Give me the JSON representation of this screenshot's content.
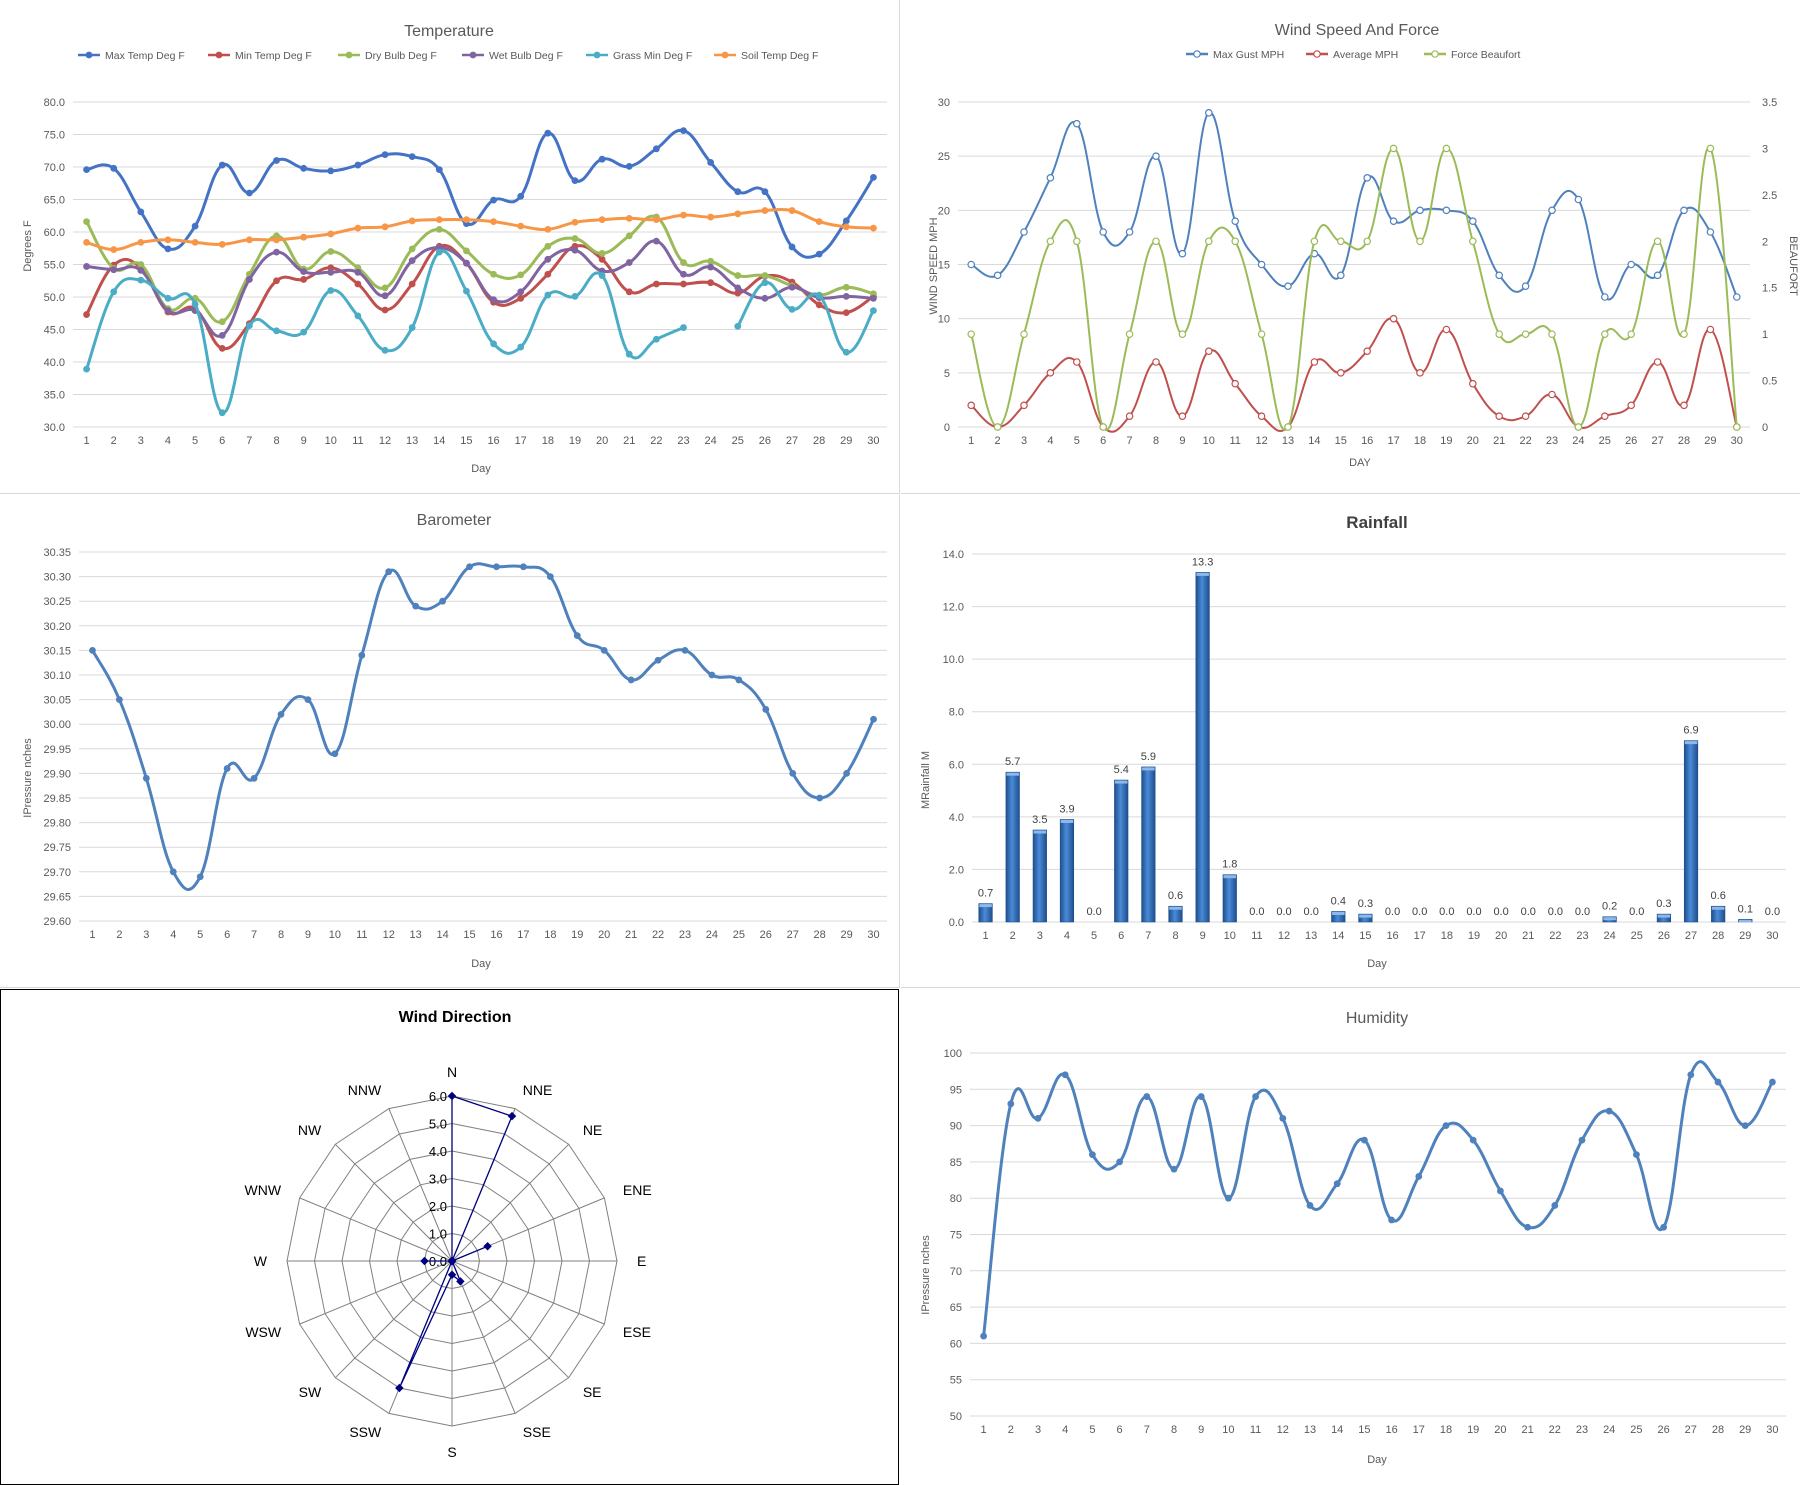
{
  "chart_data": [
    {
      "id": "temperature",
      "type": "line",
      "title": "Temperature",
      "xlabel": "Day",
      "ylabel": "Degrees F",
      "ylim": [
        30,
        80
      ],
      "yticks": [
        "80.0",
        "75.0",
        "70.0",
        "65.0",
        "60.0",
        "55.0",
        "50.0",
        "45.0",
        "40.0",
        "35.0",
        "30.0"
      ],
      "categories": [
        "1",
        "2",
        "3",
        "4",
        "5",
        "6",
        "7",
        "8",
        "9",
        "10",
        "11",
        "12",
        "13",
        "14",
        "15",
        "16",
        "17",
        "18",
        "19",
        "20",
        "21",
        "22",
        "23",
        "24",
        "25",
        "26",
        "27",
        "28",
        "29",
        "30"
      ],
      "legend_position": "top",
      "grid": true,
      "series": [
        {
          "name": "Max Temp Deg F",
          "color": "#4472C4",
          "values": [
            69.6,
            69.8,
            63.1,
            57.4,
            60.9,
            70.3,
            66.0,
            71.0,
            69.8,
            69.4,
            70.3,
            71.9,
            71.6,
            69.6,
            61.3,
            64.9,
            65.5,
            75.2,
            67.9,
            71.2,
            70.1,
            72.8,
            75.6,
            70.7,
            66.2,
            66.2,
            57.7,
            56.6,
            61.7,
            68.4
          ]
        },
        {
          "name": "Min Temp Deg F",
          "color": "#C0504D",
          "values": [
            47.3,
            54.9,
            54.5,
            47.7,
            48.2,
            42.1,
            45.9,
            52.5,
            52.7,
            54.5,
            52.0,
            48.0,
            52.0,
            57.8,
            55.2,
            49.2,
            49.8,
            53.5,
            57.8,
            55.8,
            50.8,
            52.0,
            52.0,
            52.2,
            50.6,
            53.2,
            52.3,
            48.8,
            47.6,
            50.1
          ]
        },
        {
          "name": "Dry Bulb Deg F",
          "color": "#9BBB59",
          "values": [
            61.6,
            54.4,
            55.0,
            48.2,
            49.8,
            46.2,
            53.5,
            59.4,
            54.3,
            57.0,
            54.5,
            51.4,
            57.4,
            60.4,
            57.1,
            53.5,
            53.4,
            57.8,
            59.0,
            56.7,
            59.4,
            62.3,
            55.3,
            55.5,
            53.3,
            53.3,
            51.7,
            50.3,
            51.5,
            50.5
          ]
        },
        {
          "name": "Wet Bulb Deg F",
          "color": "#8064A2",
          "values": [
            54.7,
            54.2,
            54.1,
            47.9,
            47.9,
            44.1,
            52.7,
            56.9,
            53.9,
            53.8,
            53.8,
            50.2,
            55.6,
            57.6,
            55.2,
            49.6,
            50.8,
            55.8,
            57.2,
            54.0,
            55.3,
            58.6,
            53.5,
            54.6,
            51.4,
            49.8,
            51.5,
            49.9,
            50.1,
            49.8
          ]
        },
        {
          "name": "Grass Min Deg F",
          "color": "#4BACC6",
          "values": [
            38.9,
            50.8,
            52.6,
            49.8,
            48.9,
            32.2,
            45.6,
            44.8,
            44.6,
            51.0,
            47.1,
            41.8,
            45.3,
            56.9,
            50.9,
            42.8,
            42.3,
            50.3,
            50.1,
            53.3,
            41.2,
            43.5,
            45.3,
            null,
            45.5,
            52.2,
            48.1,
            50.2,
            41.5,
            47.9
          ]
        },
        {
          "name": "Soil Temp Deg F",
          "color": "#F79646",
          "values": [
            58.4,
            57.3,
            58.4,
            58.8,
            58.4,
            58.1,
            58.8,
            58.8,
            59.2,
            59.7,
            60.6,
            60.8,
            61.7,
            61.9,
            61.9,
            61.6,
            60.9,
            60.4,
            61.5,
            61.9,
            62.1,
            61.9,
            62.6,
            62.3,
            62.8,
            63.3,
            63.3,
            61.6,
            60.8,
            60.6
          ]
        }
      ]
    },
    {
      "id": "wind",
      "type": "line",
      "title": "Wind Speed And Force",
      "xlabel": "DAY",
      "ylabel": "WIND SPEED MPH",
      "y2label": "BEAUFORT",
      "ylim": [
        0,
        30
      ],
      "y2lim": [
        0,
        3.5
      ],
      "yticks": [
        "30",
        "25",
        "20",
        "15",
        "10",
        "5",
        "0"
      ],
      "y2ticks": [
        "3.5",
        "3",
        "2.5",
        "2",
        "1.5",
        "1",
        "0.5",
        "0"
      ],
      "categories": [
        "1",
        "2",
        "3",
        "4",
        "5",
        "6",
        "7",
        "8",
        "9",
        "10",
        "11",
        "12",
        "13",
        "14",
        "15",
        "16",
        "17",
        "18",
        "19",
        "20",
        "21",
        "22",
        "23",
        "24",
        "25",
        "26",
        "27",
        "28",
        "29",
        "30"
      ],
      "legend_position": "top",
      "grid": true,
      "series": [
        {
          "name": "Max Gust MPH",
          "color": "#4F81BD",
          "axis": "left",
          "values": [
            15,
            14,
            18,
            23,
            28,
            18,
            18,
            25,
            16,
            29,
            19,
            15,
            13,
            16,
            14,
            23,
            19,
            20,
            20,
            19,
            14,
            13,
            20,
            21,
            12,
            15,
            14,
            20,
            18,
            12
          ]
        },
        {
          "name": "Average MPH",
          "color": "#C0504D",
          "axis": "left",
          "values": [
            2,
            0,
            2,
            5,
            6,
            0,
            1,
            6,
            1,
            7,
            4,
            1,
            0,
            6,
            5,
            7,
            10,
            5,
            9,
            4,
            1,
            1,
            3,
            0,
            1,
            2,
            6,
            2,
            9,
            0
          ]
        },
        {
          "name": "Force Beaufort",
          "color": "#9BBB59",
          "axis": "right",
          "values": [
            1,
            0,
            1,
            2,
            2,
            0,
            1,
            2,
            1,
            2,
            2,
            1,
            0,
            2,
            2,
            2,
            3,
            2,
            3,
            2,
            1,
            1,
            1,
            0,
            1,
            1,
            2,
            1,
            3,
            0
          ]
        }
      ]
    },
    {
      "id": "barometer",
      "type": "line",
      "title": "Barometer",
      "xlabel": "Day",
      "ylabel": "IPressure nches",
      "ylim": [
        29.6,
        30.35
      ],
      "yticks": [
        "30.35",
        "30.30",
        "30.25",
        "30.20",
        "30.15",
        "30.10",
        "30.05",
        "30.00",
        "29.95",
        "29.90",
        "29.85",
        "29.80",
        "29.75",
        "29.70",
        "29.65",
        "29.60"
      ],
      "categories": [
        "1",
        "2",
        "3",
        "4",
        "5",
        "6",
        "7",
        "8",
        "9",
        "10",
        "11",
        "12",
        "13",
        "14",
        "15",
        "16",
        "17",
        "18",
        "19",
        "20",
        "21",
        "22",
        "23",
        "24",
        "25",
        "26",
        "27",
        "28",
        "29",
        "30"
      ],
      "grid": true,
      "series": [
        {
          "name": "",
          "color": "#4F81BD",
          "values": [
            30.15,
            30.05,
            29.89,
            29.7,
            29.69,
            29.91,
            29.89,
            30.02,
            30.05,
            29.94,
            30.14,
            30.31,
            30.24,
            30.25,
            30.32,
            30.32,
            30.32,
            30.3,
            30.18,
            30.15,
            30.09,
            30.13,
            30.15,
            30.1,
            30.09,
            30.03,
            29.9,
            29.85,
            29.9,
            30.01
          ]
        }
      ]
    },
    {
      "id": "rainfall",
      "type": "bar",
      "title": "Rainfall",
      "xlabel": "Day",
      "ylabel": "MRainfall M",
      "ylim": [
        0,
        14
      ],
      "yticks": [
        "14.0",
        "12.0",
        "10.0",
        "8.0",
        "6.0",
        "4.0",
        "2.0",
        "0.0"
      ],
      "categories": [
        "1",
        "2",
        "3",
        "4",
        "5",
        "6",
        "7",
        "8",
        "9",
        "10",
        "11",
        "12",
        "13",
        "14",
        "15",
        "16",
        "17",
        "18",
        "19",
        "20",
        "21",
        "22",
        "23",
        "24",
        "25",
        "26",
        "27",
        "28",
        "29",
        "30"
      ],
      "values": [
        0.7,
        5.7,
        3.5,
        3.9,
        0.0,
        5.4,
        5.9,
        0.6,
        13.3,
        1.8,
        0.0,
        0.0,
        0.0,
        0.4,
        0.3,
        0.0,
        0.0,
        0.0,
        0.0,
        0.0,
        0.0,
        0.0,
        0.0,
        0.2,
        0.0,
        0.3,
        6.9,
        0.6,
        0.1,
        0.0
      ],
      "labels": [
        "0.7",
        "5.7",
        "3.5",
        "3.9",
        "0.0",
        "5.4",
        "5.9",
        "0.6",
        "13.3",
        "1.8",
        "0.0",
        "0.0",
        "0.0",
        "0.4",
        "0.3",
        "0.0",
        "0.0",
        "0.0",
        "0.0",
        "0.0",
        "0.0",
        "0.0",
        "0.0",
        "0.2",
        "0.0",
        "0.3",
        "6.9",
        "0.6",
        "0.1",
        "0.0"
      ],
      "color": "#2E6BB8",
      "grid": true
    },
    {
      "id": "wind_direction",
      "type": "radar",
      "title": "Wind Direction",
      "directions": [
        "N",
        "NNE",
        "NE",
        "ENE",
        "E",
        "ESE",
        "SE",
        "SSE",
        "S",
        "SSW",
        "SW",
        "WSW",
        "W",
        "WNW",
        "NW",
        "NNW"
      ],
      "values": [
        6.0,
        5.7,
        0.0,
        1.4,
        0.0,
        0.0,
        0.0,
        0.8,
        0.5,
        5.0,
        0.0,
        0.0,
        1.0,
        0.0,
        0.0,
        0.0
      ],
      "rlim": [
        0,
        6
      ],
      "rticks": [
        "0.0",
        "1.0",
        "2.0",
        "3.0",
        "4.0",
        "5.0",
        "6.0"
      ],
      "color": "#000080",
      "grid": true
    },
    {
      "id": "humidity",
      "type": "line",
      "title": "Humidity",
      "xlabel": "Day",
      "ylabel": "IPressure nches",
      "ylim": [
        50,
        100
      ],
      "yticks": [
        "100",
        "95",
        "90",
        "85",
        "80",
        "75",
        "70",
        "65",
        "60",
        "55",
        "50"
      ],
      "categories": [
        "1",
        "2",
        "3",
        "4",
        "5",
        "6",
        "7",
        "8",
        "9",
        "10",
        "11",
        "12",
        "13",
        "14",
        "15",
        "16",
        "17",
        "18",
        "19",
        "20",
        "21",
        "22",
        "23",
        "24",
        "25",
        "26",
        "27",
        "28",
        "29",
        "30"
      ],
      "grid": true,
      "series": [
        {
          "name": "",
          "color": "#4F81BD",
          "values": [
            61,
            93,
            91,
            97,
            86,
            85,
            94,
            84,
            94,
            80,
            94,
            91,
            79,
            82,
            88,
            77,
            83,
            90,
            88,
            81,
            76,
            79,
            88,
            92,
            86,
            76,
            97,
            96,
            90,
            96
          ]
        }
      ]
    }
  ]
}
